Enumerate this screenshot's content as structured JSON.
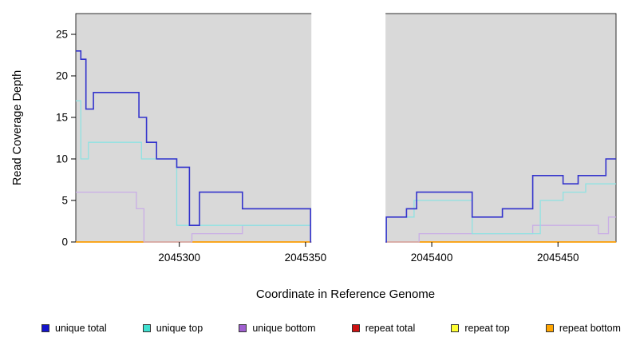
{
  "figure": {
    "panel_bg": "#d9d9d9",
    "panel_border": "#000000",
    "gap_band_color": "#ffffff"
  },
  "chart_data": {
    "type": "line",
    "step": true,
    "title": "",
    "xlabel": "Coordinate in Reference Genome",
    "ylabel": "Read Coverage Depth",
    "xlim": [
      2045259,
      2045473
    ],
    "ylim": [
      0,
      27.5
    ],
    "xticks": [
      2045300,
      2045350,
      2045400,
      2045450
    ],
    "yticks": [
      0,
      5,
      10,
      15,
      20,
      25
    ],
    "gap": {
      "from": 2045352,
      "to": 2045382
    },
    "grid": false,
    "legend_position": "bottom",
    "series": [
      {
        "name": "repeat total",
        "color": "#cc1111",
        "width": 1.2,
        "points": [
          [
            2045259,
            0
          ],
          [
            2045473,
            0
          ]
        ]
      },
      {
        "name": "repeat top",
        "color": "#ffee00",
        "width": 1.2,
        "points": [
          [
            2045259,
            0
          ],
          [
            2045473,
            0
          ]
        ]
      },
      {
        "name": "repeat bottom",
        "color": "#ff9d00",
        "width": 1.4,
        "points": [
          [
            2045259,
            0
          ],
          [
            2045473,
            0
          ]
        ]
      },
      {
        "name": "unique bottom",
        "color": "#c9aee6",
        "width": 1.3,
        "points": [
          [
            2045259,
            6
          ],
          [
            2045283,
            4
          ],
          [
            2045286,
            0
          ],
          [
            2045305,
            1
          ],
          [
            2045325,
            2
          ],
          [
            2045352,
            0
          ],
          [
            2045382,
            0
          ],
          [
            2045395,
            1
          ],
          [
            2045440,
            2
          ],
          [
            2045466,
            1
          ],
          [
            2045470,
            3
          ],
          [
            2045473,
            3
          ]
        ]
      },
      {
        "name": "unique top",
        "color": "#8fe2e2",
        "width": 1.3,
        "points": [
          [
            2045259,
            17
          ],
          [
            2045261,
            10
          ],
          [
            2045264,
            12
          ],
          [
            2045285,
            10
          ],
          [
            2045299,
            2
          ],
          [
            2045352,
            0
          ],
          [
            2045382,
            3
          ],
          [
            2045393,
            5
          ],
          [
            2045416,
            1
          ],
          [
            2045443,
            5
          ],
          [
            2045452,
            6
          ],
          [
            2045461,
            7
          ],
          [
            2045473,
            7
          ]
        ]
      },
      {
        "name": "unique total",
        "color": "#3333cc",
        "width": 1.6,
        "points": [
          [
            2045259,
            23
          ],
          [
            2045261,
            22
          ],
          [
            2045263,
            16
          ],
          [
            2045266,
            18
          ],
          [
            2045284,
            15
          ],
          [
            2045287,
            12
          ],
          [
            2045291,
            10
          ],
          [
            2045299,
            9
          ],
          [
            2045304,
            2
          ],
          [
            2045308,
            6
          ],
          [
            2045325,
            4
          ],
          [
            2045352,
            0
          ],
          [
            2045382,
            3
          ],
          [
            2045390,
            4
          ],
          [
            2045394,
            6
          ],
          [
            2045416,
            3
          ],
          [
            2045428,
            4
          ],
          [
            2045440,
            8
          ],
          [
            2045452,
            7
          ],
          [
            2045458,
            8
          ],
          [
            2045469,
            10
          ],
          [
            2045473,
            10
          ]
        ]
      }
    ],
    "legend": [
      {
        "label": "unique total",
        "color": "#1414cc"
      },
      {
        "label": "unique top",
        "color": "#40e0d0"
      },
      {
        "label": "unique bottom",
        "color": "#a060d0"
      },
      {
        "label": "repeat total",
        "color": "#cc1111"
      },
      {
        "label": "repeat top",
        "color": "#ffff33"
      },
      {
        "label": "repeat bottom",
        "color": "#ffa500"
      }
    ]
  }
}
